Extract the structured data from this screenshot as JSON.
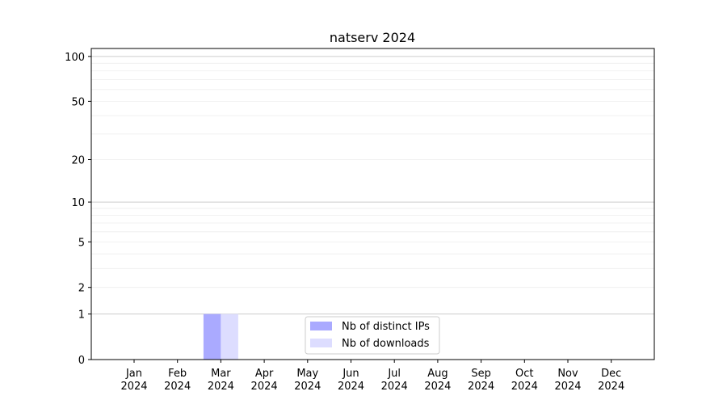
{
  "chart_data": {
    "type": "bar",
    "title": "natserv 2024",
    "xlabel": "",
    "ylabel": "",
    "yscale": "log(1+y)",
    "ylim": [
      0,
      113
    ],
    "grid": true,
    "legend_position": "bottom-center",
    "categories": [
      "Jan\n2024",
      "Feb\n2024",
      "Mar\n2024",
      "Apr\n2024",
      "May\n2024",
      "Jun\n2024",
      "Jul\n2024",
      "Aug\n2024",
      "Sep\n2024",
      "Oct\n2024",
      "Nov\n2024",
      "Dec\n2024"
    ],
    "category_lines": [
      [
        "Jan",
        "2024"
      ],
      [
        "Feb",
        "2024"
      ],
      [
        "Mar",
        "2024"
      ],
      [
        "Apr",
        "2024"
      ],
      [
        "May",
        "2024"
      ],
      [
        "Jun",
        "2024"
      ],
      [
        "Jul",
        "2024"
      ],
      [
        "Aug",
        "2024"
      ],
      [
        "Sep",
        "2024"
      ],
      [
        "Oct",
        "2024"
      ],
      [
        "Nov",
        "2024"
      ],
      [
        "Dec",
        "2024"
      ]
    ],
    "yticks": [
      0,
      1,
      2,
      5,
      10,
      20,
      50,
      100
    ],
    "series": [
      {
        "name": "Nb of distinct IPs",
        "color": "#aaaaff",
        "values": [
          0,
          0,
          1,
          0,
          0,
          0,
          0,
          0,
          0,
          0,
          0,
          0
        ]
      },
      {
        "name": "Nb of downloads",
        "color": "#ddddff",
        "values": [
          0,
          0,
          1,
          0,
          0,
          0,
          0,
          0,
          0,
          0,
          0,
          0
        ]
      }
    ]
  }
}
